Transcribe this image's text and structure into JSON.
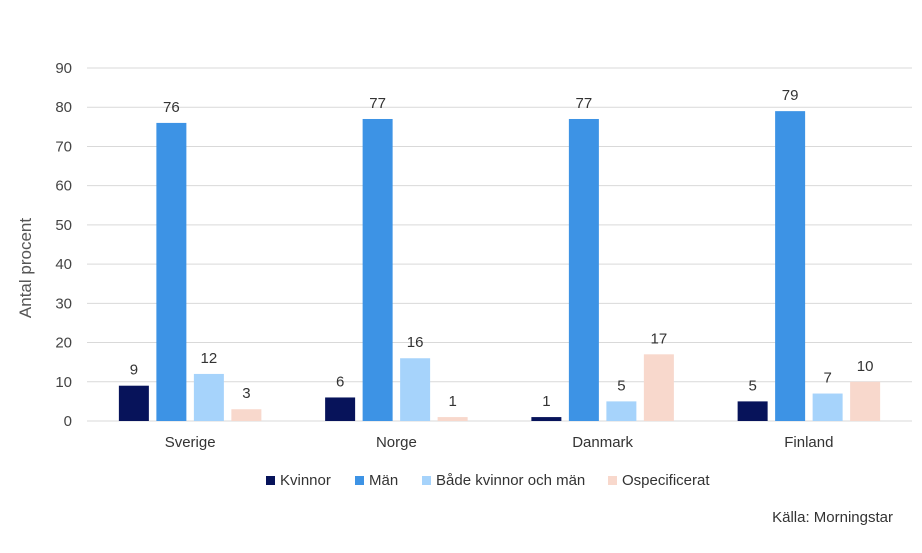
{
  "chart_data": {
    "type": "bar",
    "categories": [
      "Sverige",
      "Norge",
      "Danmark",
      "Finland"
    ],
    "series": [
      {
        "name": "Kvinnor",
        "values": [
          9,
          6,
          1,
          5
        ],
        "color": "#07135a"
      },
      {
        "name": "Män",
        "values": [
          76,
          77,
          77,
          79
        ],
        "color": "#3d93e5"
      },
      {
        "name": "Både kvinnor och män",
        "values": [
          12,
          16,
          5,
          7
        ],
        "color": "#a6d3fb"
      },
      {
        "name": "Ospecificerat",
        "values": [
          3,
          1,
          17,
          10
        ],
        "color": "#f8d8cc"
      }
    ],
    "ylabel": "Antal procent",
    "ylim": [
      0,
      90
    ],
    "yticks": [
      0,
      10,
      20,
      30,
      40,
      50,
      60,
      70,
      80,
      90
    ],
    "grid": true,
    "legend_position": "bottom"
  },
  "source": "Källa: Morningstar"
}
